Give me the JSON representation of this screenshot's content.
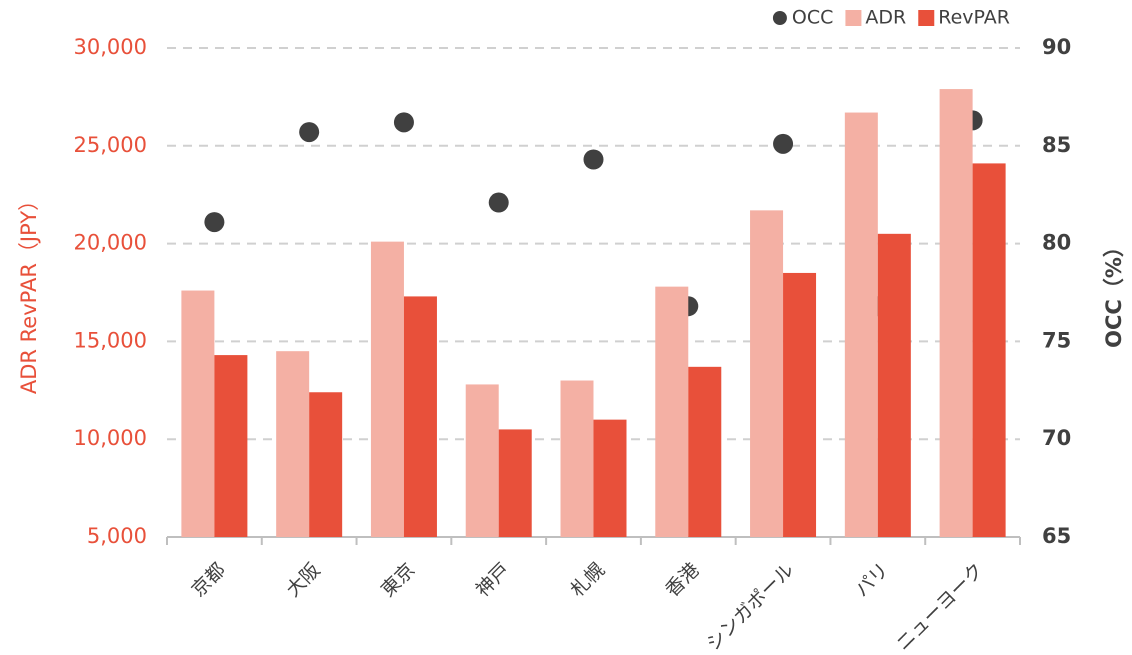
{
  "chart_data": {
    "type": "bar",
    "y_label": "ADR RevPAR（JPY）",
    "y2_label": "OCC（%）",
    "categories": [
      "京都",
      "大阪",
      "東京",
      "神戸",
      "札幌",
      "香港",
      "シンガポール",
      "パリ",
      "ニューヨーク"
    ],
    "series": [
      {
        "name": "OCC",
        "color": "#404040",
        "type": "scatter",
        "axis": "y2",
        "values": [
          81.1,
          85.7,
          86.2,
          82.1,
          84.3,
          76.8,
          85.1,
          76.8,
          86.3
        ]
      },
      {
        "name": "ADR",
        "color": "#f4b0a4",
        "values": [
          17600,
          14500,
          20100,
          12800,
          13000,
          17800,
          21700,
          26700,
          27900
        ]
      },
      {
        "name": "RevPAR",
        "color": "#e8503a",
        "values": [
          14300,
          12400,
          17300,
          10500,
          11000,
          13700,
          18500,
          20500,
          24100
        ]
      }
    ],
    "ylim": [
      5000,
      30000
    ],
    "yticks": [
      {
        "value": 5000,
        "label": "5,000"
      },
      {
        "value": 10000,
        "label": "10,000"
      },
      {
        "value": 15000,
        "label": "15,000"
      },
      {
        "value": 20000,
        "label": "20,000"
      },
      {
        "value": 25000,
        "label": "25,000"
      },
      {
        "value": 30000,
        "label": "30,000"
      }
    ],
    "y2lim": [
      65,
      90
    ],
    "y2ticks": [
      65,
      70,
      75,
      80,
      85,
      90
    ],
    "grid": true,
    "legend": "top-right"
  }
}
